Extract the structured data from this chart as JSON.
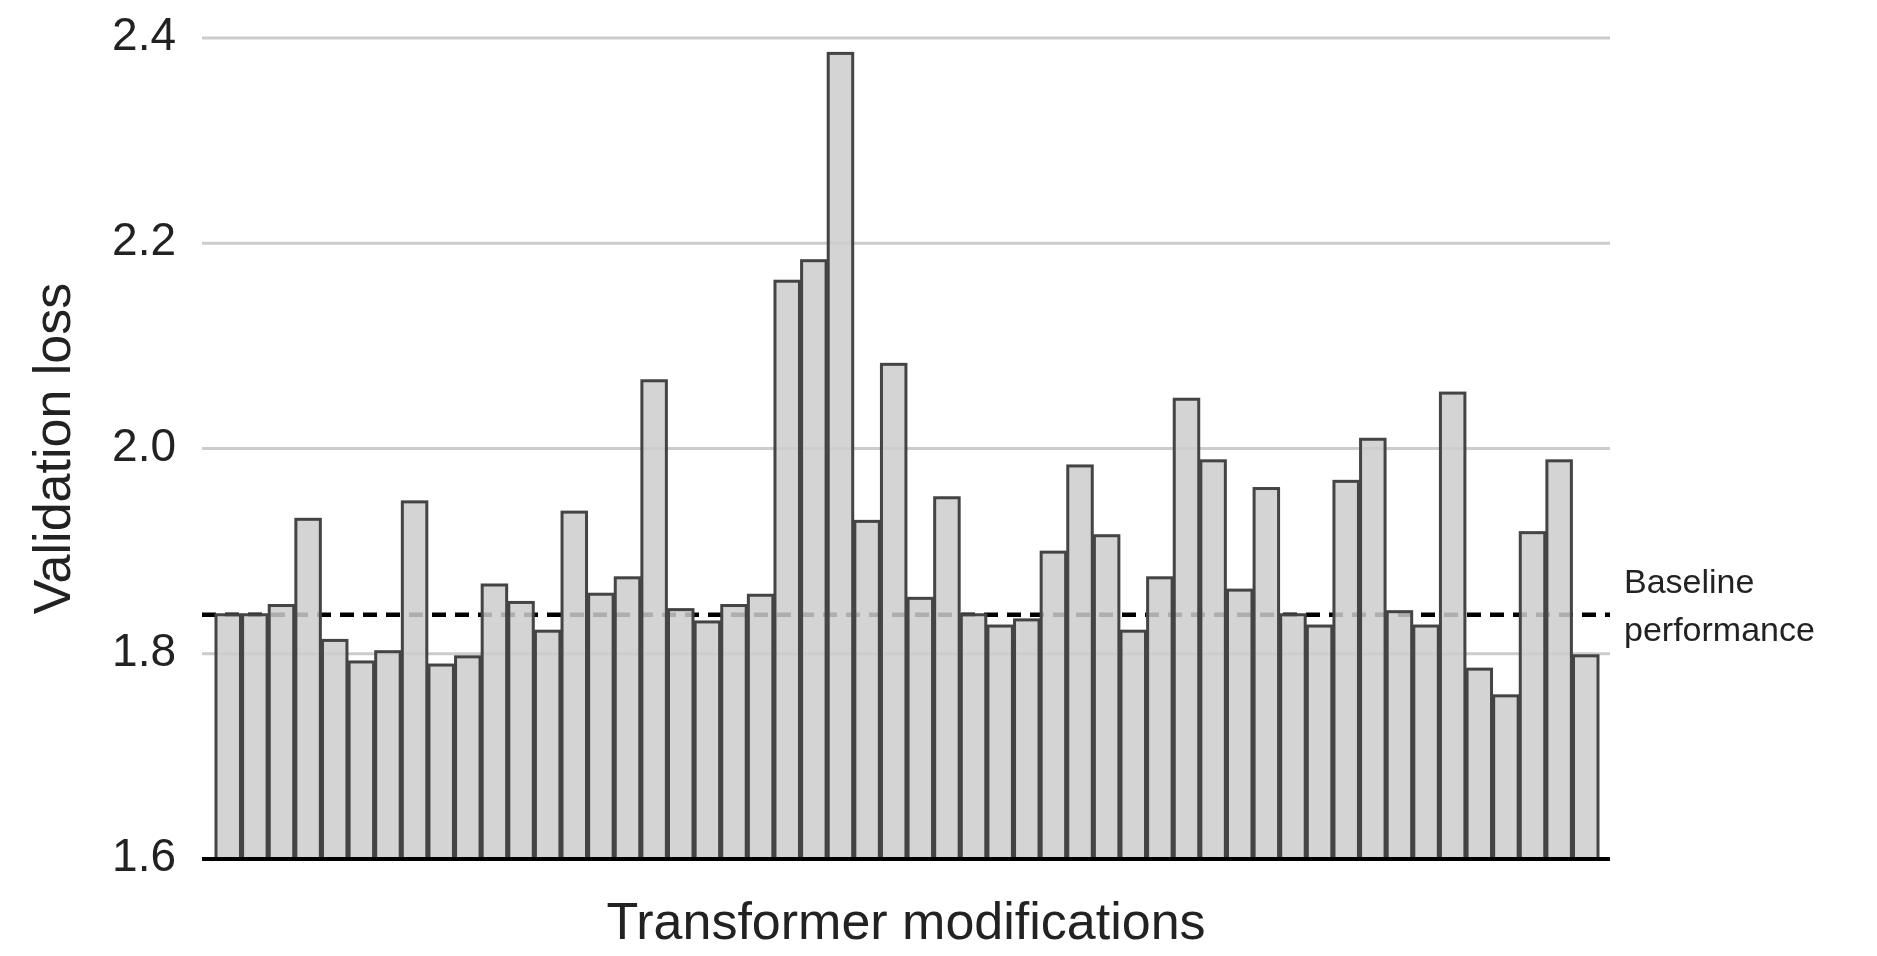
{
  "chart_data": {
    "type": "bar",
    "xlabel": "Transformer modifications",
    "ylabel": "Validation loss",
    "categories": [
      null,
      null,
      null,
      null,
      null,
      null,
      null,
      null,
      null,
      null,
      null,
      null,
      null,
      null,
      null,
      null,
      null,
      null,
      null,
      null,
      null,
      null,
      null,
      null,
      null,
      null,
      null,
      null,
      null,
      null,
      null,
      null,
      null,
      null,
      null,
      null,
      null,
      null,
      null,
      null,
      null,
      null,
      null,
      null,
      null,
      null,
      null,
      null,
      null,
      null,
      null,
      null
    ],
    "values": [
      1.838,
      1.838,
      1.847,
      1.931,
      1.813,
      1.792,
      1.802,
      1.948,
      1.789,
      1.797,
      1.867,
      1.85,
      1.822,
      1.938,
      1.858,
      1.874,
      2.066,
      1.843,
      1.831,
      1.847,
      1.857,
      2.163,
      2.183,
      2.385,
      1.929,
      2.082,
      1.854,
      1.952,
      1.838,
      1.827,
      1.833,
      1.899,
      1.983,
      1.915,
      1.822,
      1.874,
      2.048,
      1.988,
      1.862,
      1.961,
      1.838,
      1.827,
      1.968,
      2.009,
      1.841,
      1.827,
      2.054,
      1.785,
      1.759,
      1.918,
      1.988,
      1.798
    ],
    "color": "#cccccc",
    "ylim": [
      1.6,
      2.4
    ],
    "yticks": [
      1.6,
      1.8,
      {
        "value": 2,
        "label": "2.0"
      },
      2.2,
      2.4
    ],
    "grid": "y",
    "ref_lines": [
      {
        "axis": "y",
        "value": 1.838,
        "label": "Baseline performance",
        "color": "#000000",
        "line_style": "dashed"
      }
    ]
  }
}
